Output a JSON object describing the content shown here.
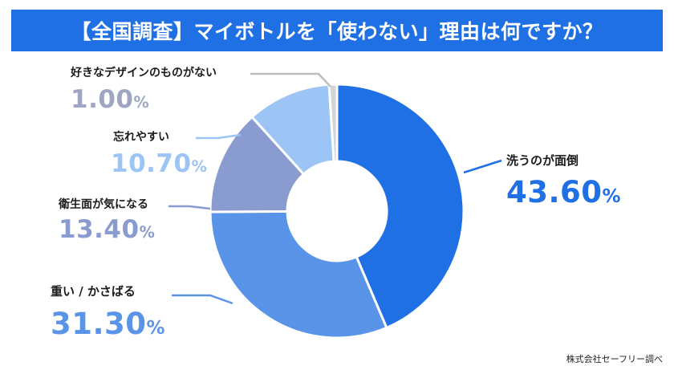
{
  "title": "【全国調査】マイボトルを「使わない」理由は何ですか？",
  "credit": "株式会社セーフリー調べ",
  "chart_data": {
    "type": "pie",
    "donut": true,
    "unit": "%",
    "slices": [
      {
        "label": "洗うのが面倒",
        "value": 43.6,
        "display": "43.60",
        "color": "#1f6fe5"
      },
      {
        "label": "重い / かさばる",
        "value": 31.3,
        "display": "31.30",
        "color": "#5a94e8"
      },
      {
        "label": "衛生面が気になる",
        "value": 13.4,
        "display": "13.40",
        "color": "#8a9bd0"
      },
      {
        "label": "忘れやすい",
        "value": 10.7,
        "display": "10.70",
        "color": "#9cc4f4"
      },
      {
        "label": "好きなデザインのものがない",
        "value": 1.0,
        "display": "1.00",
        "color": "#d3d3d3"
      }
    ]
  }
}
